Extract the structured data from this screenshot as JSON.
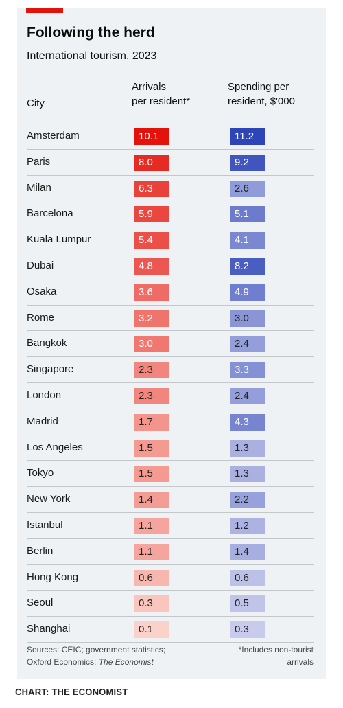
{
  "title": "Following the herd",
  "subtitle": "International tourism, 2023",
  "brand_color": "#e3120b",
  "chart_data": {
    "type": "table",
    "columns": [
      "City",
      "Arrivals per resident*",
      "Spending per resident, $'000"
    ],
    "column_headers": {
      "city": "City",
      "arrivals_line1": "Arrivals",
      "arrivals_line2": "per resident*",
      "spending_line1": "Spending per",
      "spending_line2": "resident, $'000"
    },
    "rows": [
      {
        "city": "Amsterdam",
        "arrivals": 10.1,
        "spending": 11.2
      },
      {
        "city": "Paris",
        "arrivals": 8.0,
        "spending": 9.2
      },
      {
        "city": "Milan",
        "arrivals": 6.3,
        "spending": 2.6
      },
      {
        "city": "Barcelona",
        "arrivals": 5.9,
        "spending": 5.1
      },
      {
        "city": "Kuala Lumpur",
        "arrivals": 5.4,
        "spending": 4.1
      },
      {
        "city": "Dubai",
        "arrivals": 4.8,
        "spending": 8.2
      },
      {
        "city": "Osaka",
        "arrivals": 3.6,
        "spending": 4.9
      },
      {
        "city": "Rome",
        "arrivals": 3.2,
        "spending": 3.0
      },
      {
        "city": "Bangkok",
        "arrivals": 3.0,
        "spending": 2.4
      },
      {
        "city": "Singapore",
        "arrivals": 2.3,
        "spending": 3.3
      },
      {
        "city": "London",
        "arrivals": 2.3,
        "spending": 2.4
      },
      {
        "city": "Madrid",
        "arrivals": 1.7,
        "spending": 4.3
      },
      {
        "city": "Los Angeles",
        "arrivals": 1.5,
        "spending": 1.3
      },
      {
        "city": "Tokyo",
        "arrivals": 1.5,
        "spending": 1.3
      },
      {
        "city": "New York",
        "arrivals": 1.4,
        "spending": 2.2
      },
      {
        "city": "Istanbul",
        "arrivals": 1.1,
        "spending": 1.2
      },
      {
        "city": "Berlin",
        "arrivals": 1.1,
        "spending": 1.4
      },
      {
        "city": "Hong Kong",
        "arrivals": 0.6,
        "spending": 0.6
      },
      {
        "city": "Seoul",
        "arrivals": 0.3,
        "spending": 0.5
      },
      {
        "city": "Shanghai",
        "arrivals": 0.1,
        "spending": 0.3
      }
    ],
    "color_scales": {
      "arrivals": {
        "low": "#fde3da",
        "high": "#e3120b"
      },
      "spending": {
        "low": "#e0e0f3",
        "high": "#2e45b8"
      }
    }
  },
  "source": {
    "line1": "Sources: CEIC; government statistics;",
    "line2_plain": "Oxford Economics; ",
    "line2_italic": "The Economist"
  },
  "footnote": {
    "line1": "*Includes non-tourist",
    "line2": "arrivals"
  },
  "credit": "CHART: THE ECONOMIST"
}
